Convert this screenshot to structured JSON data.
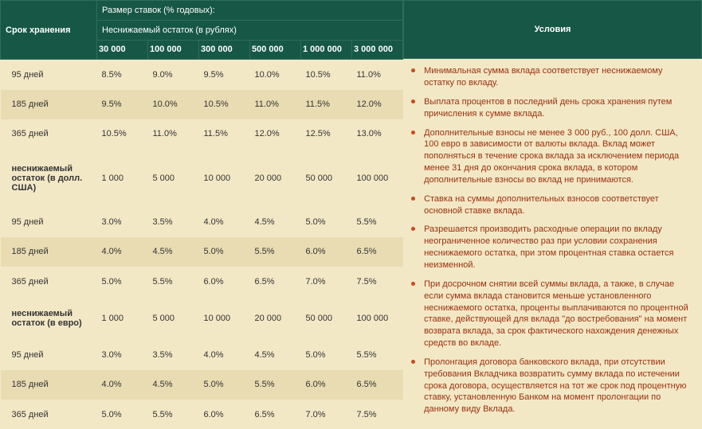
{
  "header": {
    "row_head": "Срок хранения",
    "top": "Размер ставок (% годовых):",
    "mid": "Неснижаемый остаток (в рублях)",
    "right": "Условия",
    "amounts": [
      "30 000",
      "100 000",
      "300 000",
      "500 000",
      "1 000 000",
      "3 000 000"
    ]
  },
  "colors": {
    "header_bg": "#165745",
    "header_border": "#2d6d5a",
    "header_text": "#ffffff",
    "row_even": "#f3e8c6",
    "row_odd": "#e9dcb3",
    "bullet": "#c94a1a",
    "cond_text": "#9a2f0d"
  },
  "sections": [
    {
      "subhead": null,
      "rows": [
        {
          "label": "95 дней",
          "vals": [
            "8.5%",
            "9.0%",
            "9.5%",
            "10.0%",
            "10.5%",
            "11.0%"
          ]
        },
        {
          "label": "185 дней",
          "vals": [
            "9.5%",
            "10.0%",
            "10.5%",
            "11.0%",
            "11.5%",
            "12.0%"
          ]
        },
        {
          "label": "365 дней",
          "vals": [
            "10.5%",
            "11.0%",
            "11.5%",
            "12.0%",
            "12.5%",
            "13.0%"
          ]
        }
      ]
    },
    {
      "subhead": {
        "label": "неснижаемый остаток (в долл. США)",
        "vals": [
          "1 000",
          "5 000",
          "10 000",
          "20 000",
          "50 000",
          "100 000"
        ]
      },
      "rows": [
        {
          "label": "95 дней",
          "vals": [
            "3.0%",
            "3.5%",
            "4.0%",
            "4.5%",
            "5.0%",
            "5.5%"
          ]
        },
        {
          "label": "185 дней",
          "vals": [
            "4.0%",
            "4.5%",
            "5.0%",
            "5.5%",
            "6.0%",
            "6.5%"
          ]
        },
        {
          "label": "365 дней",
          "vals": [
            "5.0%",
            "5.5%",
            "6.0%",
            "6.5%",
            "7.0%",
            "7.5%"
          ]
        }
      ]
    },
    {
      "subhead": {
        "label": "неснижаемый остаток (в евро)",
        "vals": [
          "1 000",
          "5 000",
          "10 000",
          "20 000",
          "50 000",
          "100 000"
        ]
      },
      "rows": [
        {
          "label": "95 дней",
          "vals": [
            "3.0%",
            "3.5%",
            "4.0%",
            "4.5%",
            "5.0%",
            "5.5%"
          ]
        },
        {
          "label": "185 дней",
          "vals": [
            "4.0%",
            "4.5%",
            "5.0%",
            "5.5%",
            "6.0%",
            "6.5%"
          ]
        },
        {
          "label": "365 дней",
          "vals": [
            "5.0%",
            "5.5%",
            "6.0%",
            "6.5%",
            "7.0%",
            "7.5%"
          ]
        }
      ]
    }
  ],
  "conditions": [
    "Минимальная сумма вклада соответствует неснижаемому остатку по вкладу.",
    "Выплата процентов в последний день срока хранения путем причисления к сумме вклада.",
    "Дополнительные взносы не менее 3 000 руб., 100 долл. США, 100 евро в зависимости от валюты вклада. Вклад может пополняться в течение срока вклада за исключением периода менее 31 дня до окончания срока вклада, в котором дополнительные взносы во вклад не принимаются.",
    "Ставка на суммы дополнительных взносов соответствует основной ставке вклада.",
    "Разрешается производить расходные операции по вкладу неограниченное количество раз при условии сохранения неснижаемого остатка, при этом процентная ставка остается неизменной.",
    "При досрочном снятии всей суммы вклада, а также, в случае если сумма вклада становится меньше установленного неснижаемого остатка, проценты выплачиваются по процентной ставке, действующей для вклада \"до востребования\" на момент возврата вклада, за срок фактического нахождения денежных средств во вкладе.",
    "Пролонгация договора банковского вклада, при отсутствии требования Вкладчика возвратить сумму вклада по истечении срока договора, осуществляется на тот же срок под процентную ставку, установленную Банком на момент пролонгации по данному виду Вклада."
  ]
}
